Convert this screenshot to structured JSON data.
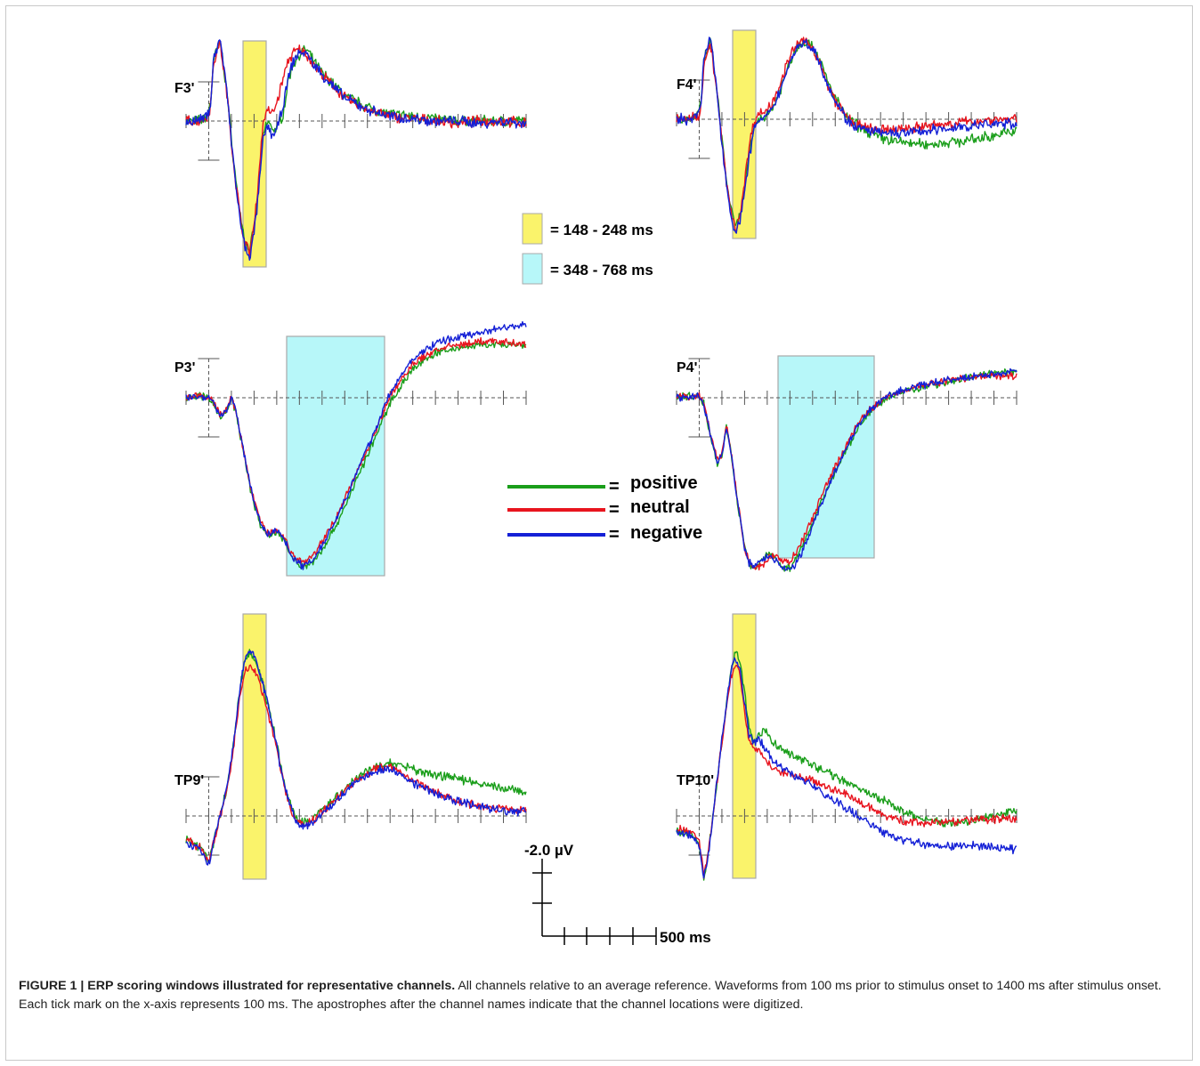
{
  "chart_data": {
    "type": "line",
    "x_units": "ms",
    "x_range": [
      -100,
      1400
    ],
    "tick_interval_ms": 100,
    "polarity": "negative up",
    "scale_bar": {
      "amplitude_label": "-2.0 µV",
      "time_label": "500 ms"
    },
    "series": [
      {
        "name": "positive",
        "color": "#1a9e1a"
      },
      {
        "name": "neutral",
        "color": "#e8141e"
      },
      {
        "name": "negative",
        "color": "#1420d6"
      }
    ],
    "windows": [
      {
        "label": "= 148 - 248 ms",
        "start": 148,
        "end": 248,
        "color": "#faf36b"
      },
      {
        "label": "= 348 - 768 ms",
        "start": 348,
        "end": 768,
        "color": "#b7f7f9"
      }
    ],
    "channels": [
      {
        "name": "F3'",
        "window": 0,
        "x": [
          -100,
          -50,
          -20,
          0,
          10,
          20,
          50,
          80,
          100,
          120,
          140,
          160,
          180,
          200,
          220,
          240,
          260,
          280,
          300,
          330,
          350,
          370,
          400,
          430,
          460,
          500,
          550,
          600,
          700,
          800,
          900,
          1000,
          1100,
          1200,
          1300,
          1400
        ],
        "y": {
          "positive": [
            0.0,
            0.0,
            0.1,
            0.4,
            0.9,
            2.6,
            3.5,
            1.3,
            -0.8,
            -2.6,
            -4.1,
            -5.2,
            -5.6,
            -4.7,
            -2.9,
            -0.6,
            0.0,
            -0.3,
            -0.4,
            0.4,
            1.7,
            2.4,
            2.9,
            3.1,
            2.6,
            2.1,
            1.6,
            1.1,
            0.6,
            0.3,
            0.2,
            0.1,
            0.0,
            0.0,
            0.0,
            0.0
          ],
          "neutral": [
            0.0,
            0.0,
            0.1,
            0.3,
            0.8,
            2.5,
            3.4,
            1.2,
            -0.9,
            -2.7,
            -4.2,
            -5.3,
            -5.7,
            -4.5,
            -2.5,
            0.0,
            0.5,
            0.3,
            0.8,
            1.9,
            2.6,
            2.9,
            3.1,
            2.9,
            2.5,
            2.0,
            1.5,
            1.0,
            0.5,
            0.2,
            0.1,
            0.0,
            -0.1,
            0.0,
            0.0,
            -0.1
          ],
          "negative": [
            0.0,
            0.0,
            0.1,
            0.4,
            0.9,
            2.6,
            3.6,
            1.3,
            -0.9,
            -2.8,
            -4.4,
            -5.5,
            -5.9,
            -4.9,
            -3.1,
            -0.8,
            -0.2,
            -0.6,
            -0.4,
            0.7,
            1.8,
            2.5,
            3.0,
            2.9,
            2.5,
            2.0,
            1.5,
            1.0,
            0.5,
            0.2,
            0.1,
            0.0,
            0.0,
            -0.1,
            0.0,
            -0.1
          ]
        }
      },
      {
        "name": "F4'",
        "window": 0,
        "x": [
          -100,
          -50,
          -20,
          0,
          10,
          20,
          50,
          80,
          100,
          120,
          140,
          160,
          180,
          200,
          220,
          240,
          260,
          280,
          300,
          330,
          370,
          400,
          430,
          460,
          500,
          530,
          560,
          600,
          650,
          700,
          800,
          900,
          1000,
          1100,
          1200,
          1300,
          1400
        ],
        "y": {
          "positive": [
            0.0,
            0.0,
            0.1,
            0.3,
            0.9,
            2.5,
            3.4,
            1.1,
            -0.9,
            -2.6,
            -3.9,
            -4.7,
            -4.2,
            -3.0,
            -1.6,
            -0.4,
            0.0,
            0.1,
            0.2,
            0.6,
            1.6,
            2.5,
            3.1,
            3.4,
            3.2,
            2.6,
            1.8,
            0.9,
            0.1,
            -0.3,
            -0.8,
            -1.0,
            -1.1,
            -1.0,
            -0.9,
            -0.7,
            -0.5
          ],
          "neutral": [
            0.0,
            0.0,
            0.1,
            0.2,
            0.8,
            2.4,
            3.3,
            1.0,
            -1.0,
            -2.7,
            -4.0,
            -4.8,
            -4.1,
            -2.7,
            -1.2,
            -0.1,
            0.2,
            0.3,
            0.4,
            0.9,
            1.9,
            2.7,
            3.2,
            3.4,
            3.1,
            2.5,
            1.6,
            0.8,
            0.1,
            -0.3,
            -0.5,
            -0.4,
            -0.3,
            -0.2,
            -0.1,
            0.0,
            0.0
          ],
          "negative": [
            0.0,
            0.0,
            0.1,
            0.3,
            0.9,
            2.6,
            3.5,
            1.1,
            -1.0,
            -2.8,
            -4.1,
            -5.0,
            -4.4,
            -3.1,
            -1.7,
            -0.5,
            -0.1,
            0.0,
            0.1,
            0.6,
            1.6,
            2.5,
            3.1,
            3.3,
            3.1,
            2.5,
            1.7,
            0.8,
            0.0,
            -0.4,
            -0.6,
            -0.6,
            -0.5,
            -0.4,
            -0.3,
            -0.2,
            -0.2
          ]
        }
      },
      {
        "name": "P3'",
        "window": 1,
        "x": [
          -100,
          -50,
          0,
          20,
          50,
          80,
          100,
          120,
          140,
          160,
          180,
          200,
          230,
          260,
          300,
          330,
          360,
          390,
          420,
          460,
          500,
          550,
          600,
          650,
          700,
          750,
          800,
          850,
          900,
          1000,
          1100,
          1200,
          1300,
          1400
        ],
        "y": {
          "positive": [
            0.0,
            0.1,
            0.0,
            -0.3,
            -1.3,
            -0.8,
            0.0,
            -0.9,
            -2.4,
            -3.9,
            -5.4,
            -6.6,
            -8.0,
            -8.6,
            -8.4,
            -8.8,
            -9.8,
            -10.4,
            -10.6,
            -10.2,
            -9.5,
            -8.3,
            -6.8,
            -5.2,
            -3.6,
            -2.0,
            -0.3,
            0.8,
            1.8,
            2.8,
            3.1,
            3.3,
            3.3,
            3.2
          ],
          "neutral": [
            0.0,
            0.1,
            0.0,
            -0.2,
            -1.1,
            -0.7,
            0.0,
            -0.8,
            -2.3,
            -3.8,
            -5.3,
            -6.4,
            -7.8,
            -8.4,
            -8.3,
            -8.6,
            -9.6,
            -10.1,
            -10.3,
            -9.8,
            -9.0,
            -7.8,
            -6.3,
            -4.8,
            -3.2,
            -1.6,
            0.1,
            1.1,
            2.1,
            3.0,
            3.3,
            3.5,
            3.5,
            3.3
          ],
          "negative": [
            0.0,
            0.1,
            0.0,
            -0.2,
            -1.2,
            -0.7,
            0.0,
            -0.8,
            -2.3,
            -3.8,
            -5.3,
            -6.5,
            -7.9,
            -8.5,
            -8.3,
            -8.7,
            -9.7,
            -10.3,
            -10.5,
            -10.1,
            -9.2,
            -7.9,
            -6.4,
            -4.8,
            -3.1,
            -1.5,
            0.3,
            1.4,
            2.4,
            3.4,
            3.8,
            4.1,
            4.4,
            4.6
          ]
        }
      },
      {
        "name": "P4'",
        "window": 1,
        "x": [
          -100,
          -50,
          0,
          20,
          50,
          80,
          100,
          120,
          140,
          160,
          180,
          200,
          220,
          250,
          280,
          310,
          340,
          370,
          400,
          430,
          460,
          500,
          550,
          600,
          650,
          700,
          750,
          800,
          850,
          900,
          1000,
          1100,
          1200,
          1300,
          1400
        ],
        "y": {
          "positive": [
            0.0,
            0.1,
            0.1,
            -0.4,
            -2.4,
            -4.1,
            -3.6,
            -1.8,
            -3.4,
            -5.6,
            -7.6,
            -9.4,
            -10.4,
            -10.6,
            -10.0,
            -9.7,
            -10.1,
            -10.6,
            -10.6,
            -10.0,
            -9.1,
            -7.8,
            -6.1,
            -4.6,
            -3.2,
            -1.9,
            -0.9,
            -0.3,
            0.1,
            0.4,
            0.7,
            1.0,
            1.3,
            1.5,
            1.6
          ],
          "neutral": [
            0.0,
            0.1,
            0.1,
            -0.3,
            -2.3,
            -3.9,
            -3.5,
            -1.7,
            -3.3,
            -5.5,
            -7.5,
            -9.3,
            -10.3,
            -10.7,
            -10.4,
            -9.9,
            -9.9,
            -10.2,
            -10.2,
            -9.6,
            -8.8,
            -7.5,
            -5.8,
            -4.3,
            -2.9,
            -1.6,
            -0.8,
            -0.2,
            0.2,
            0.5,
            0.8,
            1.1,
            1.3,
            1.4,
            1.4
          ],
          "negative": [
            0.0,
            0.1,
            0.1,
            -0.4,
            -2.4,
            -4.0,
            -3.6,
            -1.8,
            -3.4,
            -5.6,
            -7.6,
            -9.4,
            -10.3,
            -10.5,
            -10.1,
            -9.8,
            -10.2,
            -10.7,
            -10.8,
            -10.3,
            -9.4,
            -8.0,
            -6.2,
            -4.6,
            -3.1,
            -1.8,
            -0.8,
            -0.2,
            0.2,
            0.5,
            0.8,
            1.1,
            1.3,
            1.5,
            1.7
          ]
        }
      },
      {
        "name": "TP9'",
        "window": 0,
        "x": [
          -100,
          -50,
          -20,
          0,
          20,
          40,
          60,
          80,
          100,
          120,
          140,
          160,
          180,
          200,
          220,
          240,
          260,
          280,
          300,
          320,
          350,
          380,
          420,
          460,
          500,
          550,
          600,
          650,
          700,
          750,
          800,
          850,
          900,
          1000,
          1100,
          1200,
          1300,
          1400
        ],
        "y": {
          "positive": [
            -1.3,
            -1.6,
            -1.9,
            -2.5,
            -1.5,
            -0.5,
            0.5,
            1.5,
            3.0,
            5.0,
            7.0,
            8.4,
            8.7,
            8.5,
            7.8,
            7.0,
            6.0,
            5.0,
            3.8,
            2.5,
            1.0,
            0.0,
            -0.4,
            -0.1,
            0.3,
            0.9,
            1.5,
            2.0,
            2.4,
            2.7,
            2.8,
            2.7,
            2.5,
            2.2,
            2.0,
            1.7,
            1.5,
            1.2
          ],
          "neutral": [
            -1.3,
            -1.6,
            -1.9,
            -2.5,
            -1.5,
            -0.6,
            0.4,
            1.4,
            2.8,
            4.7,
            6.6,
            7.8,
            8.0,
            7.8,
            7.2,
            6.5,
            5.6,
            4.7,
            3.6,
            2.3,
            0.8,
            -0.2,
            -0.5,
            -0.2,
            0.2,
            0.8,
            1.4,
            1.9,
            2.3,
            2.6,
            2.6,
            2.3,
            1.9,
            1.3,
            0.8,
            0.5,
            0.4,
            0.3
          ],
          "negative": [
            -1.4,
            -1.7,
            -2.0,
            -2.6,
            -1.6,
            -0.5,
            0.5,
            1.5,
            3.0,
            5.0,
            7.0,
            8.4,
            8.8,
            8.6,
            7.9,
            7.0,
            6.0,
            5.0,
            3.7,
            2.4,
            0.9,
            -0.1,
            -0.6,
            -0.3,
            0.1,
            0.7,
            1.3,
            1.8,
            2.2,
            2.5,
            2.5,
            2.2,
            1.8,
            1.2,
            0.8,
            0.5,
            0.3,
            0.2
          ]
        }
      },
      {
        "name": "TP10'",
        "window": 0,
        "x": [
          -100,
          -50,
          -20,
          0,
          10,
          20,
          40,
          60,
          80,
          100,
          120,
          140,
          160,
          180,
          200,
          220,
          240,
          260,
          280,
          300,
          330,
          360,
          400,
          450,
          500,
          550,
          600,
          650,
          700,
          750,
          800,
          850,
          900,
          1000,
          1100,
          1200,
          1300,
          1400
        ],
        "y": {
          "positive": [
            -0.8,
            -0.9,
            -1.1,
            -1.5,
            -2.3,
            -3.3,
            -2.0,
            0.0,
            2.0,
            4.0,
            6.0,
            7.8,
            8.8,
            8.3,
            6.5,
            4.8,
            3.9,
            4.3,
            4.6,
            4.4,
            3.9,
            3.6,
            3.3,
            3.0,
            2.7,
            2.4,
            2.1,
            1.8,
            1.5,
            1.2,
            0.9,
            0.6,
            0.2,
            -0.2,
            -0.4,
            -0.3,
            0.0,
            0.3
          ],
          "neutral": [
            -0.7,
            -0.8,
            -1.0,
            -1.4,
            -2.2,
            -3.2,
            -2.0,
            0.0,
            2.0,
            3.9,
            5.8,
            7.5,
            8.2,
            7.6,
            5.6,
            4.0,
            3.5,
            3.6,
            3.3,
            2.9,
            2.5,
            2.4,
            2.3,
            2.1,
            1.9,
            1.6,
            1.4,
            1.1,
            0.8,
            0.5,
            0.2,
            -0.1,
            -0.3,
            -0.4,
            -0.3,
            -0.2,
            -0.2,
            -0.1
          ],
          "negative": [
            -0.9,
            -1.0,
            -1.2,
            -1.6,
            -2.4,
            -3.4,
            -2.1,
            0.0,
            2.0,
            4.0,
            6.0,
            7.8,
            8.5,
            7.8,
            6.0,
            4.3,
            3.9,
            4.1,
            3.8,
            3.4,
            2.9,
            2.6,
            2.3,
            2.0,
            1.6,
            1.2,
            0.8,
            0.4,
            0.0,
            -0.4,
            -0.8,
            -1.1,
            -1.3,
            -1.5,
            -1.6,
            -1.6,
            -1.7,
            -1.8
          ]
        }
      }
    ]
  },
  "caption": {
    "lead": "FIGURE 1 | ERP scoring windows illustrated for representative channels.",
    "body": " All channels relative to an average reference. Waveforms from 100 ms prior to stimulus onset to 1400 ms after stimulus onset. Each tick mark on the x-axis represents 100 ms. The apostrophes after the channel names indicate that the channel locations were digitized."
  }
}
